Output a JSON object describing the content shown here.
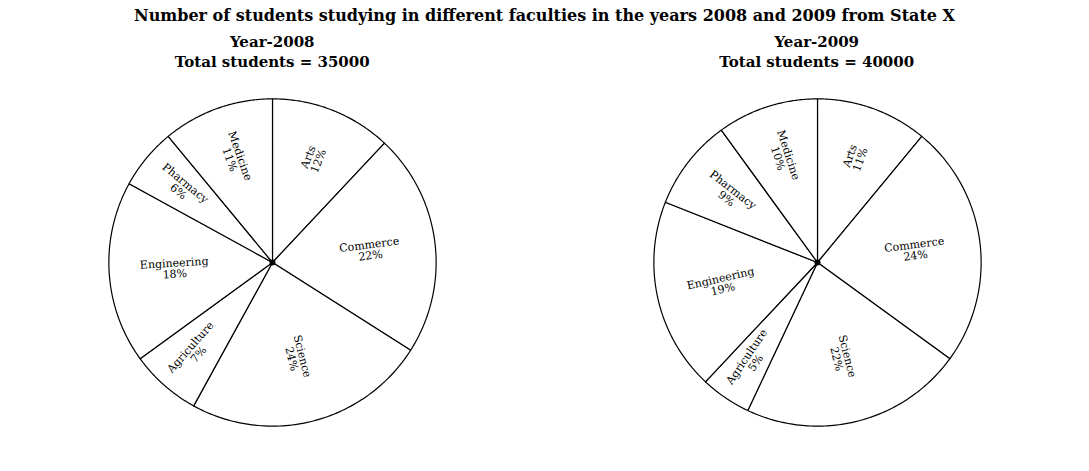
{
  "title": "Number of students studying in different faculties in the years 2008 and 2009 from State X",
  "chart_data": [
    {
      "type": "pie",
      "title": "Year-2008",
      "subtitle": "Total students = 35000",
      "categories": [
        "Arts",
        "Commerce",
        "Science",
        "Agriculture",
        "Engineering",
        "Pharmacy",
        "Medicine"
      ],
      "values": [
        12,
        22,
        24,
        7,
        18,
        6,
        11
      ],
      "value_labels": [
        "12%",
        "22%",
        "24%",
        "7%",
        "18%",
        "6%",
        "11%"
      ],
      "color": "#ffffff",
      "data_labels": true
    },
    {
      "type": "pie",
      "title": "Year-2009",
      "subtitle": "Total students = 40000",
      "categories": [
        "Arts",
        "Commerce",
        "Science",
        "Agriculture",
        "Engineering",
        "Pharmacy",
        "Medicine"
      ],
      "values": [
        11,
        24,
        22,
        5,
        19,
        9,
        10
      ],
      "value_labels": [
        "11%",
        "24%",
        "22%",
        "5%",
        "19%",
        "9%",
        "10%"
      ],
      "color": "#ffffff",
      "data_labels": true
    }
  ]
}
